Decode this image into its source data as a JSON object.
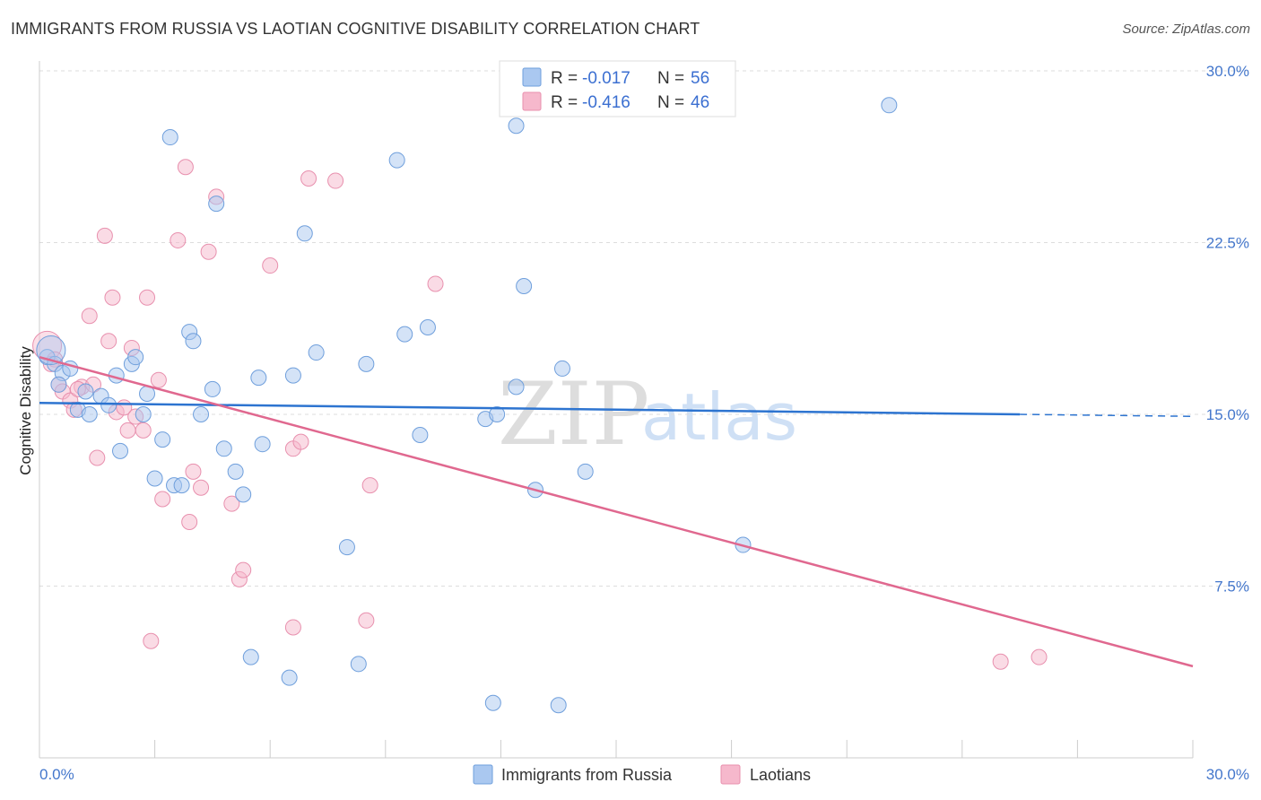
{
  "title": "IMMIGRANTS FROM RUSSIA VS LAOTIAN COGNITIVE DISABILITY CORRELATION CHART",
  "source": "Source: ZipAtlas.com",
  "watermark": {
    "zip": "ZIP",
    "atlas": "atlas"
  },
  "colors": {
    "blue_fill": "#aac8f0",
    "blue_stroke": "#6f9fdc",
    "blue_line": "#2d74d0",
    "pink_fill": "#f6b8cc",
    "pink_stroke": "#e890ae",
    "pink_line": "#e0688f",
    "tick_text": "#4477cc",
    "grid": "#dddddd"
  },
  "legend": {
    "r_label": "R =",
    "n_label": "N =",
    "russia": {
      "r": "-0.017",
      "n": "56"
    },
    "laotians": {
      "r": "-0.416",
      "n": "46"
    }
  },
  "chart_data": {
    "type": "scatter",
    "title": "IMMIGRANTS FROM RUSSIA VS LAOTIAN COGNITIVE DISABILITY CORRELATION CHART",
    "xlabel": "",
    "ylabel": "Cognitive Disability",
    "xlim": [
      0,
      30
    ],
    "ylim": [
      0,
      30
    ],
    "x_tick_labels": [
      "0.0%",
      "30.0%"
    ],
    "y_ticks": [
      7.5,
      15.0,
      22.5,
      30.0
    ],
    "y_tick_labels": [
      "7.5%",
      "15.0%",
      "22.5%",
      "30.0%"
    ],
    "series": [
      {
        "name": "Immigrants from Russia",
        "color": "blue",
        "trend": {
          "x": [
            0,
            25.5
          ],
          "y": [
            15.5,
            15.0
          ],
          "dashed_to": 30
        },
        "points": [
          [
            0.2,
            17.5
          ],
          [
            0.4,
            17.2
          ],
          [
            0.6,
            16.8
          ],
          [
            0.8,
            17.0
          ],
          [
            0.5,
            16.3
          ],
          [
            1.0,
            15.2
          ],
          [
            1.2,
            16.0
          ],
          [
            1.3,
            15.0
          ],
          [
            1.6,
            15.8
          ],
          [
            1.8,
            15.4
          ],
          [
            2.0,
            16.7
          ],
          [
            2.1,
            13.4
          ],
          [
            2.4,
            17.2
          ],
          [
            2.5,
            17.5
          ],
          [
            2.7,
            15.0
          ],
          [
            2.8,
            15.9
          ],
          [
            3.0,
            12.2
          ],
          [
            3.2,
            13.9
          ],
          [
            3.4,
            27.1
          ],
          [
            3.5,
            11.9
          ],
          [
            3.7,
            11.9
          ],
          [
            3.9,
            18.6
          ],
          [
            4.0,
            18.2
          ],
          [
            4.2,
            15.0
          ],
          [
            4.5,
            16.1
          ],
          [
            4.6,
            24.2
          ],
          [
            4.8,
            13.5
          ],
          [
            5.1,
            12.5
          ],
          [
            5.3,
            11.5
          ],
          [
            5.5,
            4.4
          ],
          [
            5.7,
            16.6
          ],
          [
            5.8,
            13.7
          ],
          [
            6.5,
            3.5
          ],
          [
            6.6,
            16.7
          ],
          [
            6.9,
            22.9
          ],
          [
            7.2,
            17.7
          ],
          [
            8.0,
            9.2
          ],
          [
            8.5,
            17.2
          ],
          [
            8.3,
            4.1
          ],
          [
            9.3,
            26.1
          ],
          [
            9.5,
            18.5
          ],
          [
            9.9,
            14.1
          ],
          [
            10.1,
            18.8
          ],
          [
            11.6,
            14.8
          ],
          [
            11.8,
            2.4
          ],
          [
            11.9,
            15.0
          ],
          [
            12.4,
            16.2
          ],
          [
            12.4,
            27.6
          ],
          [
            12.6,
            20.6
          ],
          [
            12.9,
            11.7
          ],
          [
            13.5,
            2.3
          ],
          [
            13.6,
            17.0
          ],
          [
            14.2,
            12.5
          ],
          [
            18.3,
            9.3
          ],
          [
            22.1,
            28.5
          ],
          [
            0.3,
            17.8
          ]
        ]
      },
      {
        "name": "Laotians",
        "color": "pink",
        "trend": {
          "x": [
            0,
            30
          ],
          "y": [
            17.5,
            4.0
          ]
        },
        "points": [
          [
            0.2,
            18.0
          ],
          [
            0.4,
            17.4
          ],
          [
            0.5,
            16.3
          ],
          [
            0.6,
            16.0
          ],
          [
            0.8,
            15.6
          ],
          [
            0.9,
            15.2
          ],
          [
            1.1,
            16.2
          ],
          [
            1.3,
            19.3
          ],
          [
            1.4,
            16.3
          ],
          [
            1.5,
            13.1
          ],
          [
            1.7,
            22.8
          ],
          [
            1.8,
            18.2
          ],
          [
            1.9,
            20.1
          ],
          [
            2.0,
            15.1
          ],
          [
            2.2,
            15.3
          ],
          [
            2.3,
            14.3
          ],
          [
            2.4,
            17.9
          ],
          [
            2.5,
            14.9
          ],
          [
            2.7,
            14.3
          ],
          [
            2.8,
            20.1
          ],
          [
            2.9,
            5.1
          ],
          [
            3.1,
            16.5
          ],
          [
            3.2,
            11.3
          ],
          [
            3.6,
            22.6
          ],
          [
            3.8,
            25.8
          ],
          [
            3.9,
            10.3
          ],
          [
            4.0,
            12.5
          ],
          [
            4.2,
            11.8
          ],
          [
            4.4,
            22.1
          ],
          [
            4.6,
            24.5
          ],
          [
            5.0,
            11.1
          ],
          [
            5.2,
            7.8
          ],
          [
            5.3,
            8.2
          ],
          [
            6.0,
            21.5
          ],
          [
            6.6,
            5.7
          ],
          [
            6.6,
            13.5
          ],
          [
            6.8,
            13.8
          ],
          [
            7.0,
            25.3
          ],
          [
            7.7,
            25.2
          ],
          [
            8.5,
            6.0
          ],
          [
            8.6,
            11.9
          ],
          [
            10.3,
            20.7
          ],
          [
            25.0,
            4.2
          ],
          [
            26.0,
            4.4
          ],
          [
            0.3,
            17.2
          ],
          [
            1.0,
            16.1
          ]
        ]
      }
    ]
  }
}
